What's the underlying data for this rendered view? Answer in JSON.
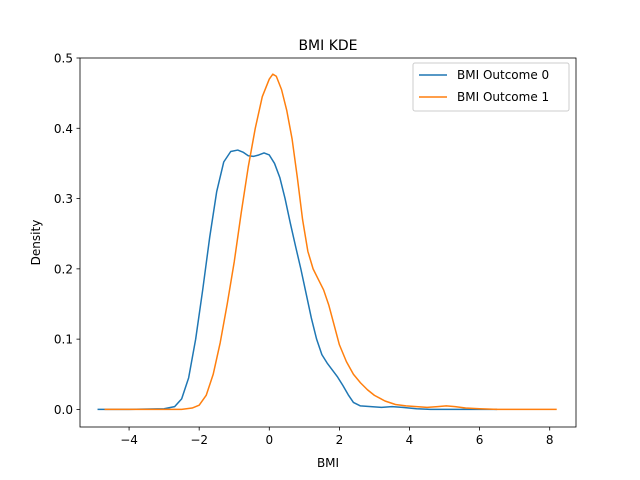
{
  "chart_data": {
    "type": "line",
    "title": "BMI KDE",
    "xlabel": "BMI",
    "ylabel": "Density",
    "xlim": [
      -5.4,
      8.75
    ],
    "ylim": [
      -0.025,
      0.5
    ],
    "xticks": [
      -4,
      -2,
      0,
      2,
      4,
      6,
      8
    ],
    "yticks": [
      0.0,
      0.1,
      0.2,
      0.3,
      0.4,
      0.5
    ],
    "xtick_labels": [
      "−4",
      "−2",
      "0",
      "2",
      "4",
      "6",
      "8"
    ],
    "ytick_labels": [
      "0.0",
      "0.1",
      "0.2",
      "0.3",
      "0.4",
      "0.5"
    ],
    "legend_position": "top-right",
    "grid": false,
    "series": [
      {
        "name": "BMI Outcome 0",
        "color": "#1f77b4",
        "points": [
          [
            -4.9,
            0.0
          ],
          [
            -4.0,
            0.0
          ],
          [
            -3.0,
            0.001
          ],
          [
            -2.7,
            0.004
          ],
          [
            -2.5,
            0.015
          ],
          [
            -2.3,
            0.045
          ],
          [
            -2.1,
            0.1
          ],
          [
            -1.9,
            0.17
          ],
          [
            -1.7,
            0.245
          ],
          [
            -1.5,
            0.31
          ],
          [
            -1.3,
            0.352
          ],
          [
            -1.1,
            0.367
          ],
          [
            -0.9,
            0.369
          ],
          [
            -0.75,
            0.366
          ],
          [
            -0.6,
            0.361
          ],
          [
            -0.45,
            0.36
          ],
          [
            -0.3,
            0.362
          ],
          [
            -0.15,
            0.365
          ],
          [
            0.0,
            0.362
          ],
          [
            0.15,
            0.35
          ],
          [
            0.3,
            0.33
          ],
          [
            0.45,
            0.3
          ],
          [
            0.6,
            0.265
          ],
          [
            0.75,
            0.232
          ],
          [
            0.9,
            0.2
          ],
          [
            1.05,
            0.165
          ],
          [
            1.2,
            0.13
          ],
          [
            1.35,
            0.1
          ],
          [
            1.5,
            0.078
          ],
          [
            1.65,
            0.066
          ],
          [
            1.8,
            0.056
          ],
          [
            1.95,
            0.046
          ],
          [
            2.1,
            0.034
          ],
          [
            2.25,
            0.021
          ],
          [
            2.4,
            0.01
          ],
          [
            2.6,
            0.005
          ],
          [
            2.9,
            0.004
          ],
          [
            3.2,
            0.003
          ],
          [
            3.5,
            0.004
          ],
          [
            3.8,
            0.003
          ],
          [
            4.2,
            0.001
          ],
          [
            4.6,
            0.0
          ],
          [
            5.0,
            0.0
          ],
          [
            6.0,
            0.0
          ],
          [
            6.5,
            0.0
          ]
        ]
      },
      {
        "name": "BMI Outcome 1",
        "color": "#ff7f0e",
        "points": [
          [
            -4.7,
            0.0
          ],
          [
            -3.5,
            0.0
          ],
          [
            -2.5,
            0.0
          ],
          [
            -2.2,
            0.002
          ],
          [
            -2.0,
            0.006
          ],
          [
            -1.8,
            0.02
          ],
          [
            -1.6,
            0.05
          ],
          [
            -1.4,
            0.095
          ],
          [
            -1.2,
            0.15
          ],
          [
            -1.0,
            0.21
          ],
          [
            -0.8,
            0.28
          ],
          [
            -0.6,
            0.345
          ],
          [
            -0.4,
            0.4
          ],
          [
            -0.2,
            0.445
          ],
          [
            0.0,
            0.47
          ],
          [
            0.1,
            0.477
          ],
          [
            0.2,
            0.474
          ],
          [
            0.35,
            0.455
          ],
          [
            0.5,
            0.425
          ],
          [
            0.65,
            0.385
          ],
          [
            0.8,
            0.33
          ],
          [
            0.95,
            0.27
          ],
          [
            1.1,
            0.225
          ],
          [
            1.25,
            0.2
          ],
          [
            1.4,
            0.185
          ],
          [
            1.55,
            0.17
          ],
          [
            1.7,
            0.148
          ],
          [
            1.85,
            0.12
          ],
          [
            2.0,
            0.092
          ],
          [
            2.2,
            0.068
          ],
          [
            2.4,
            0.05
          ],
          [
            2.6,
            0.038
          ],
          [
            2.8,
            0.028
          ],
          [
            3.0,
            0.02
          ],
          [
            3.3,
            0.012
          ],
          [
            3.6,
            0.007
          ],
          [
            3.9,
            0.005
          ],
          [
            4.2,
            0.004
          ],
          [
            4.5,
            0.003
          ],
          [
            4.8,
            0.004
          ],
          [
            5.05,
            0.005
          ],
          [
            5.3,
            0.004
          ],
          [
            5.6,
            0.002
          ],
          [
            6.0,
            0.001
          ],
          [
            6.5,
            0.0
          ],
          [
            7.0,
            0.0
          ],
          [
            7.5,
            0.0
          ],
          [
            8.2,
            0.0
          ]
        ]
      }
    ]
  }
}
